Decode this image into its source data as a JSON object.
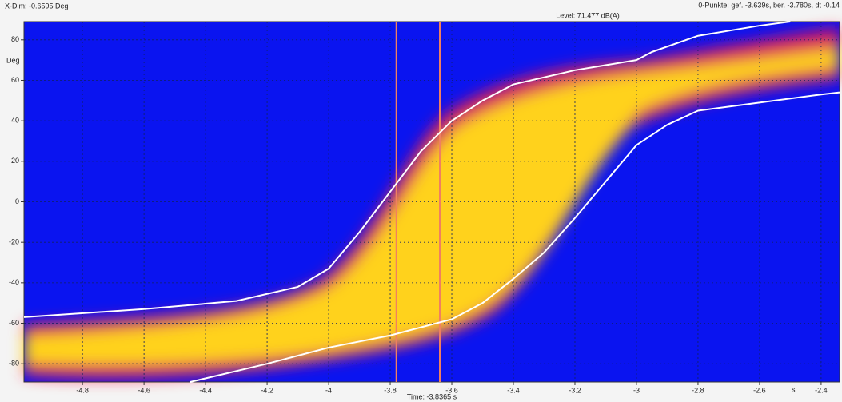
{
  "chart_data": {
    "type": "line",
    "header_left": "X-Dim: -0.6595 Deg",
    "header_mid": "Level: 71.477 dB(A)",
    "header_right": "0-Punkte: gef. -3.639s, ber. -3.780s, dt -0.14",
    "y_unit": "Deg",
    "x_unit": "s",
    "x_title": "Time: -3.8365 s",
    "xlim": [
      -4.99,
      -2.34
    ],
    "ylim": [
      -89,
      89
    ],
    "xticks": [
      -4.8,
      -4.6,
      -4.4,
      -4.2,
      -4,
      -3.8,
      -3.6,
      -3.4,
      -3.2,
      -3,
      -2.8,
      -2.6,
      -2.4
    ],
    "yticks": [
      -80,
      -60,
      -40,
      -20,
      0,
      20,
      40,
      60,
      80
    ],
    "grid": true,
    "cursors": {
      "color": "#f08060",
      "values": [
        -3.78,
        -3.639
      ]
    },
    "series": [
      {
        "color": "#ffffff",
        "x": [
          -4.99,
          -4.6,
          -4.3,
          -4.1,
          -4.0,
          -3.9,
          -3.8,
          -3.7,
          -3.6,
          -3.5,
          -3.4,
          -3.2,
          -3.0,
          -2.95,
          -2.8,
          -2.6,
          -2.5
        ],
        "values": [
          -57,
          -53,
          -49,
          -42,
          -33,
          -15,
          5,
          25,
          40,
          50,
          58,
          65,
          70,
          74,
          82,
          87,
          89
        ]
      },
      {
        "color": "#ffffff",
        "x": [
          -4.45,
          -4.2,
          -4.0,
          -3.8,
          -3.6,
          -3.5,
          -3.4,
          -3.3,
          -3.2,
          -3.1,
          -3.0,
          -2.9,
          -2.8,
          -2.6,
          -2.4,
          -2.34
        ],
        "values": [
          -89,
          -80,
          -72,
          -66,
          -58,
          -50,
          -38,
          -25,
          -8,
          10,
          28,
          38,
          45,
          49,
          53,
          54
        ]
      }
    ]
  }
}
